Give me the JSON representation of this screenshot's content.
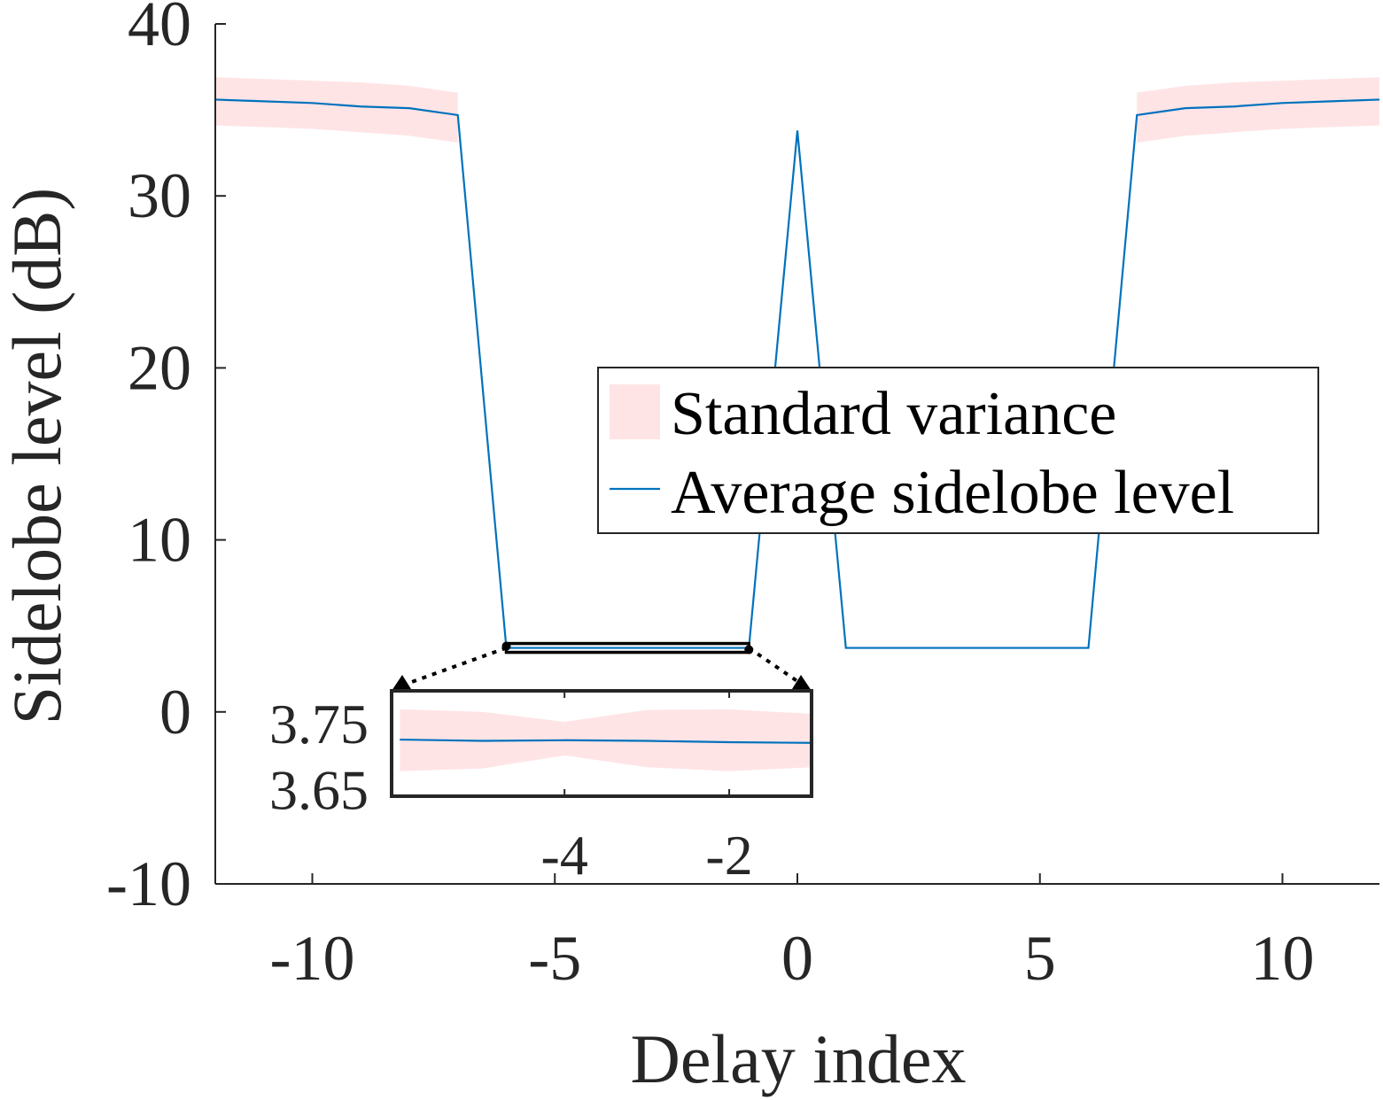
{
  "chart_data": [
    {
      "type": "line",
      "xlabel": "Delay index",
      "ylabel": "Sidelobe level (dB)",
      "xlim": [
        -12,
        12
      ],
      "ylim": [
        -10,
        40
      ],
      "xticks": [
        -10,
        -5,
        0,
        5,
        10
      ],
      "xtick_labels": [
        "-10",
        "-5",
        "0",
        "5",
        "10"
      ],
      "yticks": [
        -10,
        0,
        10,
        20,
        30,
        40
      ],
      "ytick_labels": [
        "-10",
        "0",
        "10",
        "20",
        "30",
        "40"
      ],
      "grid": false,
      "legend_position": "center-right",
      "legend": [
        {
          "label": "Standard variance",
          "kind": "band",
          "color": "#ffe4e6"
        },
        {
          "label": "Average sidelobe level",
          "kind": "line",
          "color": "#0072bd"
        }
      ],
      "x": [
        -12,
        -11,
        -10,
        -9,
        -8,
        -7,
        -6,
        -5,
        -4,
        -3,
        -2,
        -1,
        0,
        1,
        2,
        3,
        4,
        5,
        6,
        7,
        8,
        9,
        10,
        11,
        12
      ],
      "series": [
        {
          "name": "Average sidelobe level",
          "color": "#0072bd",
          "values": [
            35.6,
            35.5,
            35.4,
            35.2,
            35.1,
            34.7,
            3.72,
            3.72,
            3.72,
            3.72,
            3.72,
            3.72,
            33.8,
            3.72,
            3.72,
            3.72,
            3.72,
            3.72,
            3.72,
            34.7,
            35.1,
            35.2,
            35.4,
            35.5,
            35.6
          ]
        }
      ],
      "band": {
        "name": "Standard variance",
        "color": "#ffe4e6",
        "x": [
          -12,
          -11,
          -10,
          -9,
          -8,
          -7,
          7,
          8,
          9,
          10,
          11,
          12
        ],
        "lower": [
          34.1,
          34.0,
          33.9,
          33.7,
          33.5,
          33.1,
          33.1,
          33.5,
          33.7,
          33.9,
          34.0,
          34.1
        ],
        "upper": [
          36.9,
          36.8,
          36.7,
          36.6,
          36.4,
          36.0,
          36.0,
          36.4,
          36.6,
          36.7,
          36.8,
          36.9
        ]
      }
    },
    {
      "type": "line",
      "role": "inset zoom",
      "xlim": [
        -6.1,
        -1.0
      ],
      "ylim": [
        3.64,
        3.8
      ],
      "xticks": [
        -4,
        -2
      ],
      "xtick_labels": [
        "-4",
        "-2"
      ],
      "yticks": [
        3.65,
        3.75
      ],
      "ytick_labels": [
        "3.65",
        "3.75"
      ],
      "x": [
        -6,
        -5,
        -4,
        -3,
        -2,
        -1
      ],
      "series": [
        {
          "name": "Average sidelobe level",
          "color": "#0072bd",
          "values": [
            3.726,
            3.724,
            3.725,
            3.724,
            3.722,
            3.721
          ]
        }
      ],
      "band": {
        "name": "Standard variance",
        "color": "#ffe4e6",
        "x": [
          -6,
          -5,
          -4,
          -3,
          -2,
          -1
        ],
        "lower": [
          3.678,
          3.682,
          3.702,
          3.684,
          3.678,
          3.684
        ],
        "upper": [
          3.772,
          3.768,
          3.753,
          3.771,
          3.772,
          3.765
        ]
      }
    }
  ]
}
